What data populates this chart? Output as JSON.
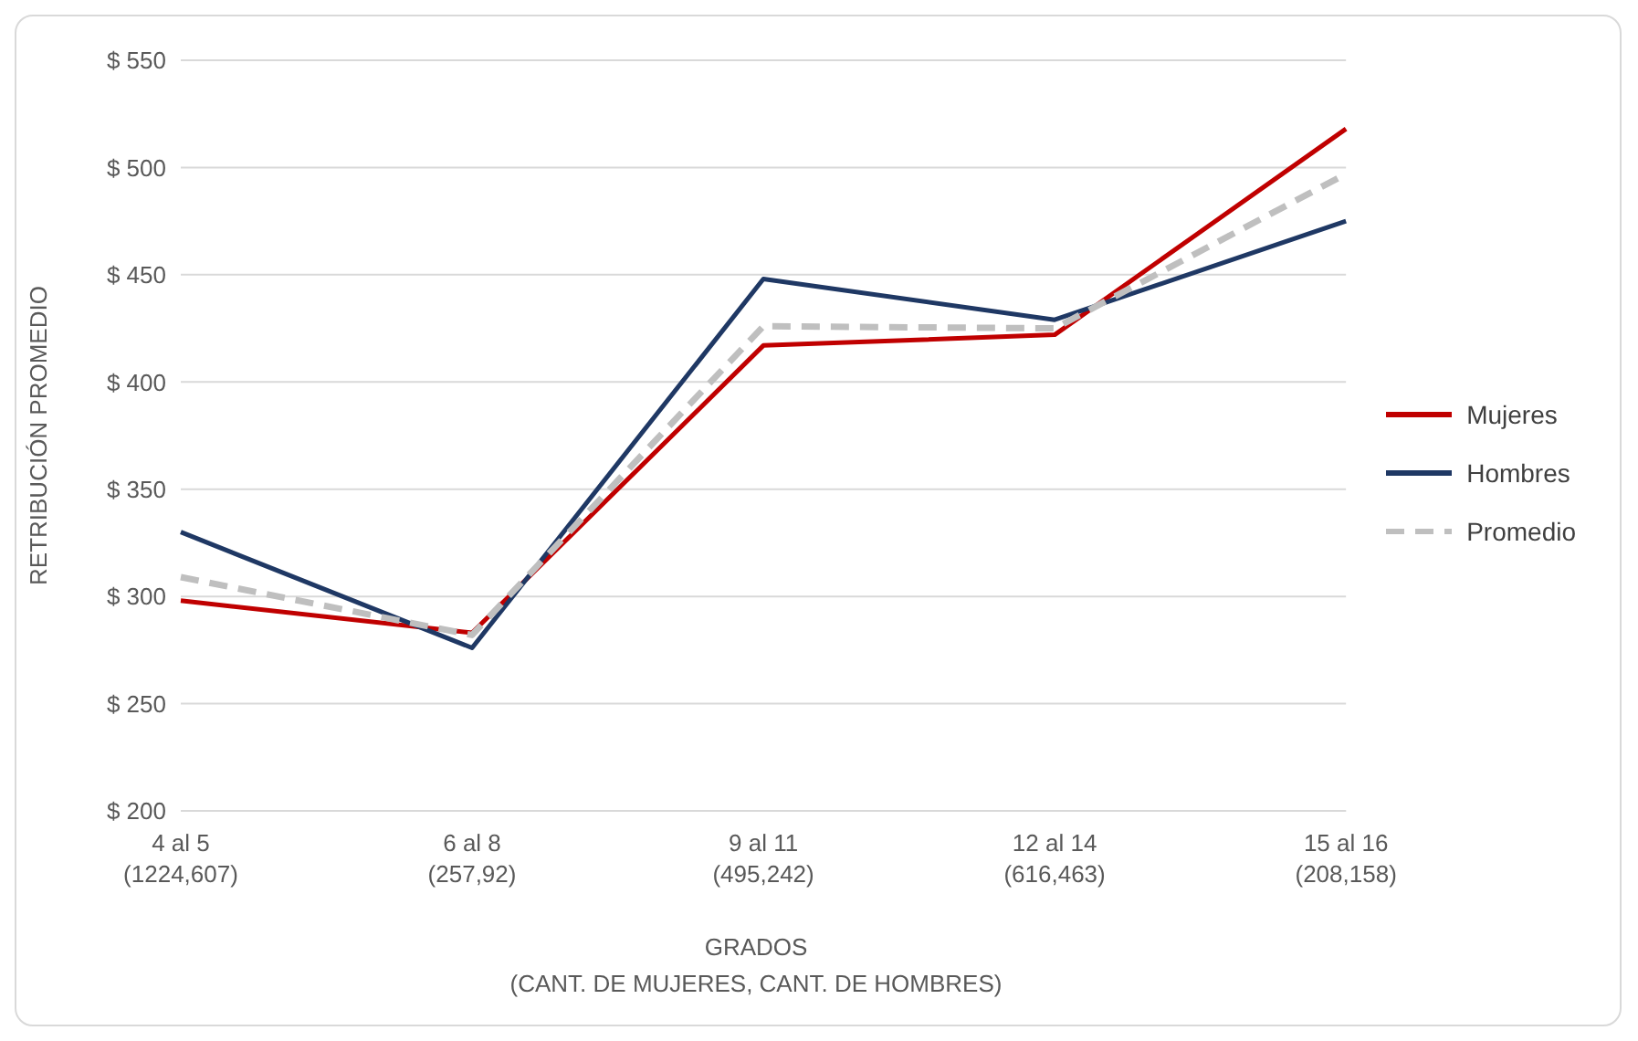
{
  "chart_data": {
    "type": "line",
    "xlabel": "GRADOS\n(CANT. DE MUJERES, CANT. DE HOMBRES)",
    "ylabel": "RETRIBUCIÓN PROMEDIO",
    "categories": [
      "4 al 5\n(1224,607)",
      "6 al 8\n(257,92)",
      "9 al 11\n(495,242)",
      "12 al 14\n(616,463)",
      "15 al 16\n(208,158)"
    ],
    "series": [
      {
        "name": "Mujeres",
        "color": "#c00000",
        "values": [
          298,
          283,
          417,
          422,
          518
        ]
      },
      {
        "name": "Hombres",
        "color": "#1f3864",
        "values": [
          330,
          276,
          448,
          429,
          475
        ]
      },
      {
        "name": "Promedio",
        "color": "#bfbfbf",
        "line_style": "dashed",
        "values": [
          309,
          282,
          426,
          425,
          497
        ]
      }
    ],
    "ylim": [
      200,
      550
    ],
    "yticks": [
      {
        "value": 200,
        "label": "$ 200"
      },
      {
        "value": 250,
        "label": "$ 250"
      },
      {
        "value": 300,
        "label": "$ 300"
      },
      {
        "value": 350,
        "label": "$ 350"
      },
      {
        "value": 400,
        "label": "$ 400"
      },
      {
        "value": 450,
        "label": "$ 450"
      },
      {
        "value": 500,
        "label": "$ 500"
      },
      {
        "value": 550,
        "label": "$ 550"
      }
    ],
    "grid": "y",
    "legend": "right",
    "marker": "none"
  }
}
